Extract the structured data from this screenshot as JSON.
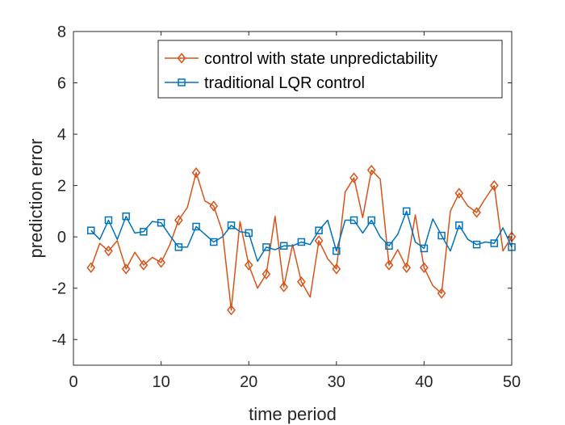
{
  "chart_data": {
    "type": "line",
    "title": "",
    "xlabel": "time period",
    "ylabel": "prediction error",
    "xlim": [
      0,
      50
    ],
    "ylim": [
      -5,
      8
    ],
    "xticks": [
      "0",
      "10",
      "20",
      "30",
      "40",
      "50"
    ],
    "yticks": [
      "-4",
      "-2",
      "0",
      "2",
      "4",
      "6",
      "8"
    ],
    "grid": false,
    "legend_position": "top-right",
    "series": [
      {
        "name": "control with state unpredictability",
        "color": "#D95319",
        "marker": "diamond",
        "x": [
          2,
          3,
          4,
          5,
          6,
          7,
          8,
          9,
          10,
          11,
          12,
          13,
          14,
          15,
          16,
          17,
          18,
          19,
          20,
          21,
          22,
          23,
          24,
          25,
          26,
          27,
          28,
          29,
          30,
          31,
          32,
          33,
          34,
          35,
          36,
          37,
          38,
          39,
          40,
          41,
          42,
          43,
          44,
          45,
          46,
          47,
          48,
          49,
          50
        ],
        "y": [
          -1.2,
          -0.25,
          -0.55,
          -0.15,
          -1.25,
          -0.6,
          -1.1,
          -0.8,
          -1.0,
          -0.3,
          0.65,
          1.15,
          2.5,
          1.4,
          1.2,
          0.2,
          -2.85,
          0.6,
          -1.1,
          -2.0,
          -1.45,
          0.8,
          -1.95,
          -0.3,
          -1.75,
          -2.35,
          -0.15,
          -0.85,
          -1.25,
          1.75,
          2.3,
          0.75,
          2.6,
          2.25,
          -1.1,
          -0.5,
          -1.2,
          0.85,
          -1.2,
          -1.9,
          -2.2,
          1.0,
          1.7,
          1.2,
          0.95,
          1.5,
          2.0,
          -0.55,
          0.0
        ]
      },
      {
        "name": "traditional LQR control",
        "color": "#0072BD",
        "marker": "square",
        "x": [
          2,
          3,
          4,
          5,
          6,
          7,
          8,
          9,
          10,
          11,
          12,
          13,
          14,
          15,
          16,
          17,
          18,
          19,
          20,
          21,
          22,
          23,
          24,
          25,
          26,
          27,
          28,
          29,
          30,
          31,
          32,
          33,
          34,
          35,
          36,
          37,
          38,
          39,
          40,
          41,
          42,
          43,
          44,
          45,
          46,
          47,
          48,
          49,
          50
        ],
        "y": [
          0.25,
          -0.1,
          0.65,
          -0.1,
          0.8,
          0.15,
          0.2,
          0.6,
          0.55,
          0.05,
          -0.4,
          -0.4,
          0.4,
          0.1,
          -0.2,
          0.0,
          0.45,
          0.2,
          0.15,
          -0.95,
          -0.4,
          -0.5,
          -0.35,
          -0.35,
          -0.2,
          -0.3,
          0.25,
          0.65,
          -0.55,
          0.65,
          0.65,
          0.15,
          0.65,
          0.0,
          -0.35,
          0.1,
          1.0,
          -0.2,
          -0.45,
          0.7,
          0.05,
          -0.55,
          0.45,
          -0.1,
          -0.3,
          -0.2,
          -0.25,
          0.35,
          -0.4
        ]
      }
    ]
  }
}
